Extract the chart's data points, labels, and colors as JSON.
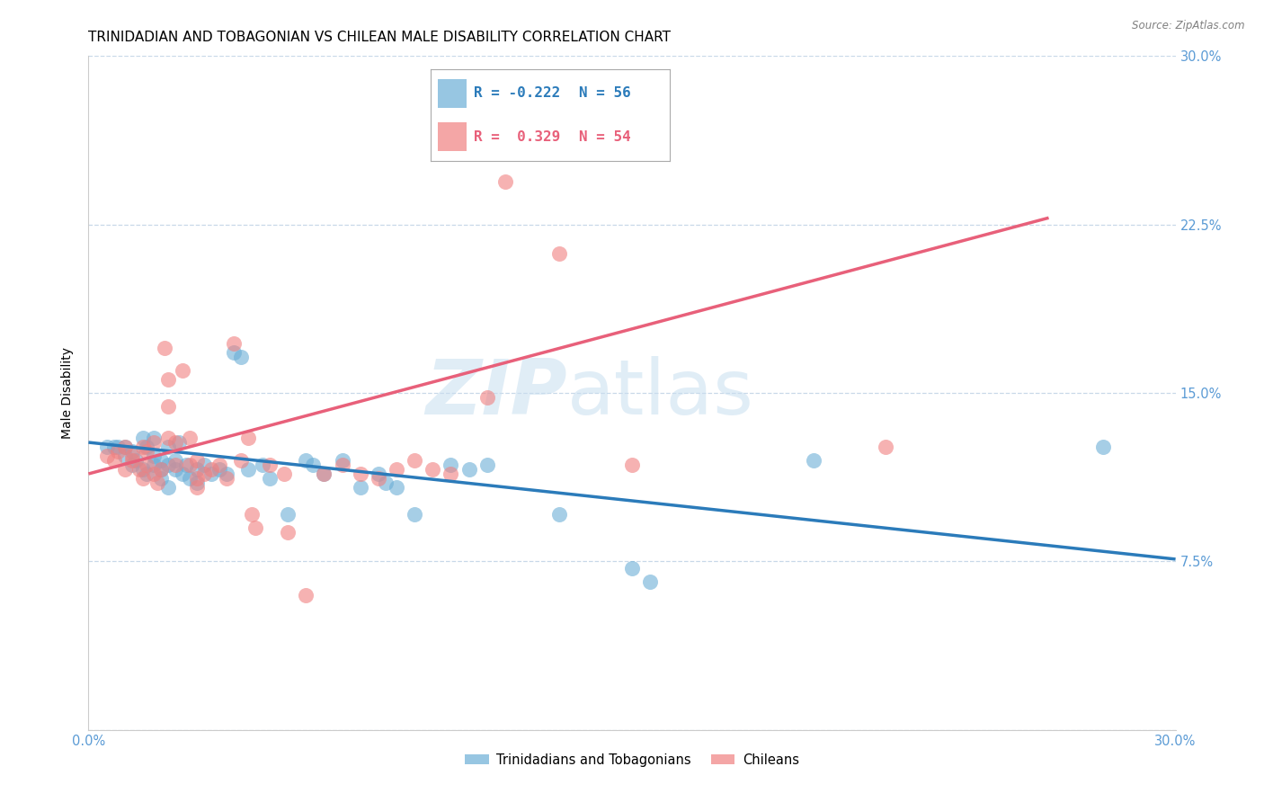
{
  "title": "TRINIDADIAN AND TOBAGONIAN VS CHILEAN MALE DISABILITY CORRELATION CHART",
  "source": "Source: ZipAtlas.com",
  "ylabel": "Male Disability",
  "x_min": 0.0,
  "x_max": 0.3,
  "y_min": 0.0,
  "y_max": 0.3,
  "x_ticks": [
    0.0,
    0.05,
    0.1,
    0.15,
    0.2,
    0.25,
    0.3
  ],
  "x_tick_labels": [
    "0.0%",
    "",
    "",
    "",
    "",
    "",
    "30.0%"
  ],
  "y_ticks": [
    0.0,
    0.075,
    0.15,
    0.225,
    0.3
  ],
  "y_tick_labels_right": [
    "",
    "7.5%",
    "15.0%",
    "22.5%",
    "30.0%"
  ],
  "blue_color": "#6baed6",
  "pink_color": "#f08080",
  "blue_line_color": "#2b7bba",
  "pink_line_color": "#e8607a",
  "axis_label_color": "#5b9bd5",
  "watermark_text": "ZIPatlas",
  "blue_scatter": [
    [
      0.005,
      0.126
    ],
    [
      0.007,
      0.126
    ],
    [
      0.008,
      0.126
    ],
    [
      0.01,
      0.126
    ],
    [
      0.01,
      0.122
    ],
    [
      0.012,
      0.118
    ],
    [
      0.012,
      0.124
    ],
    [
      0.013,
      0.12
    ],
    [
      0.015,
      0.116
    ],
    [
      0.015,
      0.13
    ],
    [
      0.016,
      0.114
    ],
    [
      0.016,
      0.126
    ],
    [
      0.018,
      0.118
    ],
    [
      0.018,
      0.122
    ],
    [
      0.018,
      0.13
    ],
    [
      0.02,
      0.112
    ],
    [
      0.02,
      0.116
    ],
    [
      0.02,
      0.12
    ],
    [
      0.022,
      0.108
    ],
    [
      0.022,
      0.118
    ],
    [
      0.022,
      0.126
    ],
    [
      0.024,
      0.116
    ],
    [
      0.024,
      0.12
    ],
    [
      0.025,
      0.128
    ],
    [
      0.026,
      0.114
    ],
    [
      0.027,
      0.118
    ],
    [
      0.028,
      0.112
    ],
    [
      0.03,
      0.11
    ],
    [
      0.03,
      0.116
    ],
    [
      0.032,
      0.118
    ],
    [
      0.034,
      0.114
    ],
    [
      0.036,
      0.116
    ],
    [
      0.038,
      0.114
    ],
    [
      0.04,
      0.168
    ],
    [
      0.042,
      0.166
    ],
    [
      0.044,
      0.116
    ],
    [
      0.048,
      0.118
    ],
    [
      0.05,
      0.112
    ],
    [
      0.055,
      0.096
    ],
    [
      0.06,
      0.12
    ],
    [
      0.062,
      0.118
    ],
    [
      0.065,
      0.114
    ],
    [
      0.07,
      0.12
    ],
    [
      0.075,
      0.108
    ],
    [
      0.08,
      0.114
    ],
    [
      0.082,
      0.11
    ],
    [
      0.085,
      0.108
    ],
    [
      0.09,
      0.096
    ],
    [
      0.1,
      0.118
    ],
    [
      0.105,
      0.116
    ],
    [
      0.11,
      0.118
    ],
    [
      0.13,
      0.096
    ],
    [
      0.15,
      0.072
    ],
    [
      0.155,
      0.066
    ],
    [
      0.2,
      0.12
    ],
    [
      0.28,
      0.126
    ]
  ],
  "pink_scatter": [
    [
      0.005,
      0.122
    ],
    [
      0.007,
      0.12
    ],
    [
      0.008,
      0.124
    ],
    [
      0.01,
      0.116
    ],
    [
      0.01,
      0.126
    ],
    [
      0.012,
      0.12
    ],
    [
      0.012,
      0.122
    ],
    [
      0.014,
      0.116
    ],
    [
      0.015,
      0.112
    ],
    [
      0.015,
      0.126
    ],
    [
      0.016,
      0.118
    ],
    [
      0.016,
      0.124
    ],
    [
      0.018,
      0.114
    ],
    [
      0.018,
      0.128
    ],
    [
      0.019,
      0.11
    ],
    [
      0.02,
      0.116
    ],
    [
      0.021,
      0.17
    ],
    [
      0.022,
      0.13
    ],
    [
      0.022,
      0.144
    ],
    [
      0.022,
      0.156
    ],
    [
      0.024,
      0.118
    ],
    [
      0.024,
      0.128
    ],
    [
      0.026,
      0.16
    ],
    [
      0.028,
      0.118
    ],
    [
      0.028,
      0.13
    ],
    [
      0.03,
      0.108
    ],
    [
      0.03,
      0.112
    ],
    [
      0.03,
      0.12
    ],
    [
      0.032,
      0.114
    ],
    [
      0.034,
      0.116
    ],
    [
      0.036,
      0.118
    ],
    [
      0.038,
      0.112
    ],
    [
      0.04,
      0.172
    ],
    [
      0.042,
      0.12
    ],
    [
      0.044,
      0.13
    ],
    [
      0.045,
      0.096
    ],
    [
      0.046,
      0.09
    ],
    [
      0.05,
      0.118
    ],
    [
      0.054,
      0.114
    ],
    [
      0.055,
      0.088
    ],
    [
      0.06,
      0.06
    ],
    [
      0.065,
      0.114
    ],
    [
      0.07,
      0.118
    ],
    [
      0.075,
      0.114
    ],
    [
      0.08,
      0.112
    ],
    [
      0.085,
      0.116
    ],
    [
      0.09,
      0.12
    ],
    [
      0.095,
      0.116
    ],
    [
      0.1,
      0.114
    ],
    [
      0.11,
      0.148
    ],
    [
      0.115,
      0.244
    ],
    [
      0.13,
      0.212
    ],
    [
      0.15,
      0.118
    ],
    [
      0.22,
      0.126
    ]
  ],
  "blue_line_x": [
    0.0,
    0.3
  ],
  "blue_line_y": [
    0.128,
    0.076
  ],
  "pink_line_x": [
    0.0,
    0.265
  ],
  "pink_line_y": [
    0.114,
    0.228
  ],
  "grid_color": "#c8d8e8",
  "background_color": "#ffffff",
  "title_fontsize": 11,
  "axis_fontsize": 10,
  "tick_fontsize": 10.5
}
